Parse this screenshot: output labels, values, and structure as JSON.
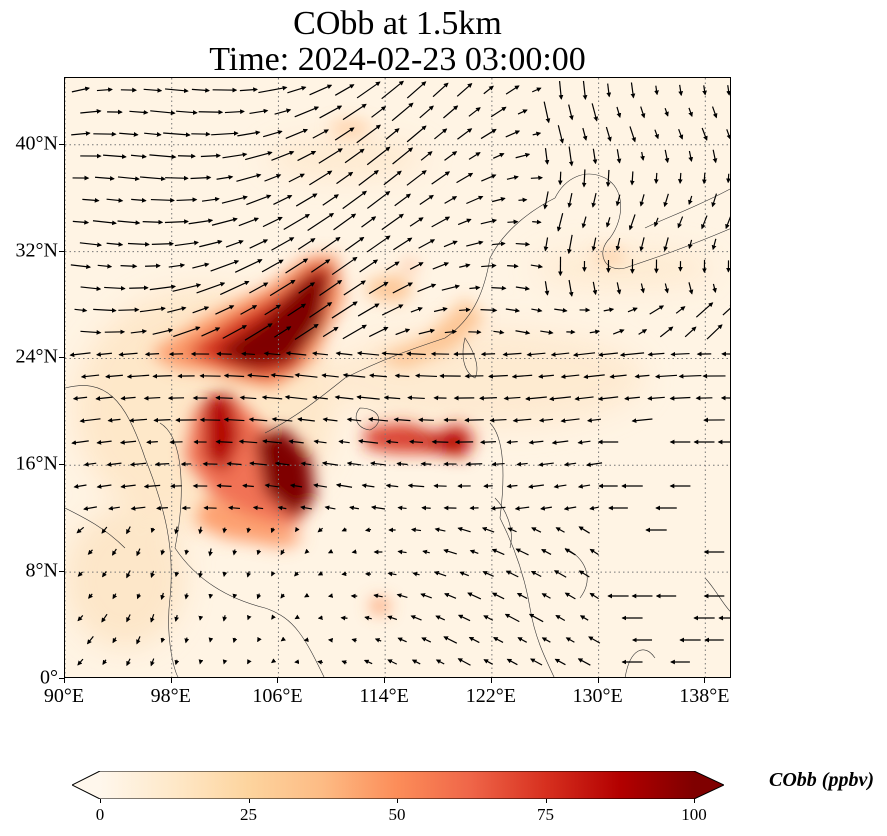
{
  "title": {
    "line1": "CObb at 1.5km",
    "line2": "Time: 2024-02-23 03:00:00"
  },
  "axes": {
    "x_ticks": [
      "90°E",
      "98°E",
      "106°E",
      "114°E",
      "122°E",
      "130°E",
      "138°E"
    ],
    "y_ticks": [
      "40°N",
      "32°N",
      "24°N",
      "16°N",
      "8°N",
      "0°"
    ],
    "lon_range": [
      90,
      140
    ],
    "lat_range": [
      0,
      45
    ],
    "gridlines": "dotted"
  },
  "colorbar": {
    "label": "CObb (ppbv)",
    "ticks": [
      "0",
      "25",
      "50",
      "75",
      "100"
    ],
    "range": [
      0,
      100
    ],
    "colormap": "OrRd",
    "extend": "both",
    "stops": [
      "#fff7ec",
      "#fee8c8",
      "#fdd49e",
      "#fdbb84",
      "#fc8d59",
      "#ef6548",
      "#d7301f",
      "#b30000",
      "#7f0000"
    ]
  },
  "chart_data": {
    "type": "heatmap",
    "variable": "CObb",
    "units": "ppbv",
    "level": "1.5km",
    "time": "2024-02-23 03:00:00",
    "plumes": [
      {
        "lon_center": 104.0,
        "lat_center": 26.5,
        "value": 100
      },
      {
        "lon_center": 107.5,
        "lat_center": 16.0,
        "value": 100
      },
      {
        "lon_center": 102.5,
        "lat_center": 19.5,
        "value": 90
      },
      {
        "lon_center": 118.0,
        "lat_center": 17.5,
        "value": 70
      },
      {
        "lon_center": 108.0,
        "lat_center": 12.0,
        "value": 45
      },
      {
        "lon_center": 120.0,
        "lat_center": 27.0,
        "value": 25
      },
      {
        "lon_center": 114.5,
        "lat_center": 5.5,
        "value": 25
      },
      {
        "lon_center": 93.0,
        "lat_center": 12.5,
        "value": 15
      },
      {
        "lon_center": 130.0,
        "lat_center": 31.5,
        "value": 12
      }
    ],
    "wind_vectors": "quiver field (black arrows)"
  }
}
